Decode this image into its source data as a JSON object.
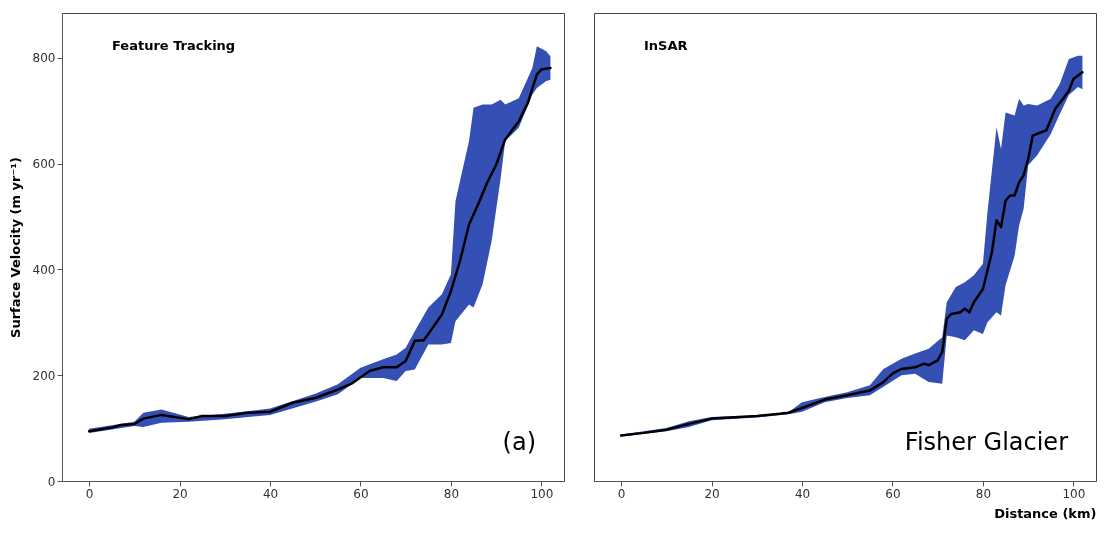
{
  "chart_data": [
    {
      "type": "line",
      "ylabel": "Surface Velocity (m yr⁻¹)",
      "annotations": [
        "Feature Tracking",
        "(a)"
      ],
      "xlim": [
        -6,
        105
      ],
      "xticks": [
        0,
        20,
        40,
        60,
        80,
        100
      ],
      "ylim": [
        0,
        885
      ],
      "yticks": [
        0,
        200,
        400,
        600,
        800
      ],
      "grid": false,
      "series": [
        {
          "color": "#000000",
          "x": [
            0,
            5,
            7,
            10,
            12,
            16,
            22,
            25,
            30,
            35,
            40,
            45,
            50,
            55,
            58,
            60,
            62,
            65,
            68,
            70,
            72,
            74,
            75,
            76,
            78,
            80,
            81,
            82,
            84,
            85,
            86,
            87,
            88,
            89,
            90,
            91,
            92,
            95,
            97,
            98,
            99,
            100,
            101,
            102
          ],
          "values": [
            94,
            101,
            106,
            108,
            118,
            125,
            117,
            123,
            123,
            129,
            131,
            148,
            157,
            173,
            184,
            null,
            208,
            215,
            215,
            227,
            265,
            266,
            null,
            290,
            315,
            359,
            null,
            416,
            485,
            null,
            523,
            null,
            564,
            null,
            598,
            null,
            646,
            680,
            715,
            null,
            769,
            778,
            null,
            781
          ],
          "lower": [
            91,
            null,
            null,
            104,
            102,
            110,
            112,
            null,
            117,
            null,
            125,
            null,
            150,
            164,
            null,
            195,
            null,
            195,
            189,
            208,
            211,
            null,
            258,
            null,
            258,
            261,
            302,
            null,
            334,
            328,
            null,
            372,
            null,
            454,
            null,
            573,
            643,
            668,
            null,
            731,
            743,
            null,
            756,
            759
          ],
          "upper": [
            99,
            null,
            null,
            112,
            129,
            135,
            121,
            null,
            127,
            null,
            137,
            null,
            165,
            183,
            null,
            214,
            null,
            230,
            239,
            252,
            283,
            null,
            328,
            null,
            353,
            391,
            529,
            null,
            643,
            706,
            null,
            712,
            null,
            712,
            null,
            721,
            712,
            724,
            null,
            781,
            822,
            null,
            813,
            803
          ]
        }
      ]
    },
    {
      "type": "line",
      "xlabel": "Distance (km)",
      "annotations": [
        "InSAR",
        "Fisher Glacier"
      ],
      "xlim": [
        -6,
        105
      ],
      "xticks": [
        0,
        20,
        40,
        60,
        80,
        100
      ],
      "ylim": [
        0,
        885
      ],
      "tick_labels": "x",
      "grid": false,
      "series": [
        {
          "color": "#000000",
          "x": [
            0,
            5,
            10,
            15,
            20,
            26,
            30,
            35,
            37,
            40,
            45,
            50,
            55,
            58,
            60,
            62,
            65,
            67,
            68,
            70,
            71,
            72,
            73,
            74,
            75,
            76,
            77,
            78,
            80,
            81,
            82,
            83,
            84,
            85,
            86,
            87,
            88,
            89,
            90,
            91,
            92,
            93,
            94,
            95,
            96,
            97,
            98,
            99,
            100,
            101,
            102
          ],
          "values": [
            86,
            91,
            97,
            108,
            118,
            121,
            123,
            127,
            129,
            138,
            154,
            162,
            171,
            187,
            203,
            212,
            215,
            222,
            219,
            228,
            244,
            307,
            316,
            null,
            319,
            326,
            319,
            338,
            363,
            null,
            433,
            493,
            480,
            530,
            540,
            540,
            565,
            578,
            609,
            653,
            null,
            660,
            663,
            null,
            704,
            null,
            726,
            738,
            760,
            null,
            773
          ],
          "lower": [
            84,
            null,
            94,
            102,
            115,
            null,
            120,
            null,
            126,
            131,
            149,
            157,
            162,
            178,
            null,
            200,
            203,
            null,
            187,
            null,
            184,
            275,
            null,
            272,
            null,
            266,
            null,
            285,
            278,
            300,
            null,
            319,
            313,
            370,
            null,
            426,
            483,
            515,
            597,
            null,
            616,
            null,
            null,
            656,
            null,
            694,
            null,
            730,
            null,
            745,
            741
          ],
          "upper": [
            88,
            null,
            100,
            113,
            121,
            null,
            124,
            null,
            130,
            149,
            159,
            168,
            181,
            212,
            null,
            231,
            241,
            null,
            250,
            null,
            272,
            338,
            null,
            367,
            null,
            376,
            null,
            389,
            411,
            508,
            null,
            669,
            628,
            697,
            null,
            691,
            723,
            710,
            713,
            null,
            710,
            null,
            null,
            723,
            null,
            751,
            null,
            798,
            null,
            804,
            804
          ]
        }
      ]
    }
  ]
}
